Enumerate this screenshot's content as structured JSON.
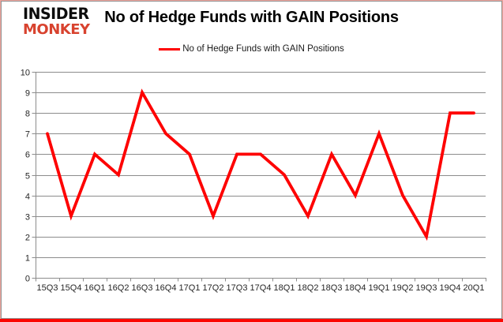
{
  "brand": {
    "line1": "INSIDER",
    "line2": "MONKEY",
    "accent_color": "#d8432f"
  },
  "title": "No of Hedge Funds with GAIN Positions",
  "legend": {
    "label": "No of Hedge Funds with GAIN Positions",
    "line_color": "#fe0000"
  },
  "colors": {
    "series_red": "#fe0000",
    "gridline_gray": "#8c8c8c",
    "axis_text": "#262626",
    "bottom_bar_red": "#fb0702"
  },
  "chart_data": {
    "type": "line",
    "title": "No of Hedge Funds with GAIN Positions",
    "series_name": "No of Hedge Funds with GAIN Positions",
    "categories": [
      "15Q3",
      "15Q4",
      "16Q1",
      "16Q2",
      "16Q3",
      "16Q4",
      "17Q1",
      "17Q2",
      "17Q3",
      "17Q4",
      "18Q1",
      "18Q2",
      "18Q3",
      "18Q4",
      "19Q1",
      "19Q2",
      "19Q3",
      "19Q4",
      "20Q1"
    ],
    "values": [
      7,
      3,
      6,
      5,
      9,
      7,
      6,
      3,
      6,
      6,
      5,
      3,
      6,
      4,
      7,
      4,
      2,
      8,
      8
    ],
    "xlabel": "",
    "ylabel": "",
    "ylim": [
      0,
      10
    ],
    "yticks": [
      0,
      1,
      2,
      3,
      4,
      5,
      6,
      7,
      8,
      9,
      10
    ],
    "line_color": "#fe0000",
    "grid": true,
    "legend_position": "top"
  }
}
